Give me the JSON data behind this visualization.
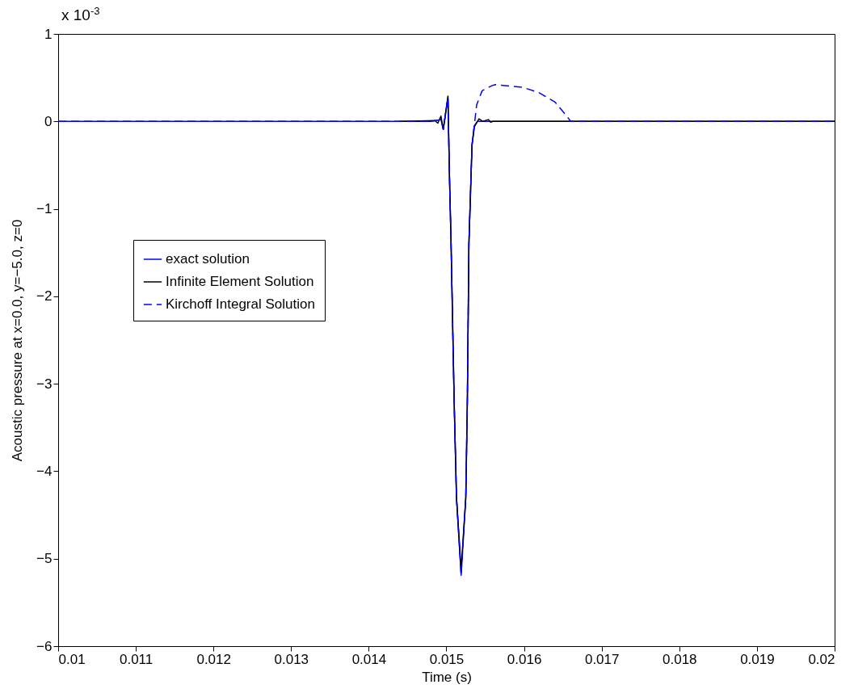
{
  "chart_data": {
    "type": "line",
    "xlabel": "Time (s)",
    "ylabel": "Acoustic pressure at x=0.0, y=−5.0, z=0",
    "annotations": [
      "x 10$^{-3}$"
    ],
    "xlim": [
      0.01,
      0.02
    ],
    "xticks": [
      0.01,
      0.011,
      0.012,
      0.013,
      0.014,
      0.015,
      0.016,
      0.017,
      0.018,
      0.019,
      0.02
    ],
    "ylim": [
      -6,
      1
    ],
    "yticks": [
      -6,
      -5,
      -4,
      -3,
      -2,
      -1,
      0,
      1
    ],
    "grid": false,
    "legend": "left",
    "marker": "none",
    "series": [
      {
        "name": "exact solution",
        "color": "#0000ff",
        "line_style": "solid",
        "x": [
          0.01,
          0.0148,
          0.01493,
          0.01496,
          0.01502,
          0.01504,
          0.01506,
          0.0151,
          0.01513,
          0.01519,
          0.01525,
          0.01527,
          0.01529,
          0.01533,
          0.01536,
          0.0154,
          0.02
        ],
        "values": [
          0,
          0,
          0.02,
          -0.09,
          0.27,
          -0.64,
          -1.38,
          -3.2,
          -4.3,
          -5.19,
          -4.3,
          -3.2,
          -1.4,
          -0.27,
          -0.05,
          0,
          0
        ]
      },
      {
        "name": "Infinite Element Solution",
        "color": "#000000",
        "line_style": "solid",
        "x": [
          0.0144,
          0.01485,
          0.01489,
          0.01493,
          0.01496,
          0.01502,
          0.01504,
          0.01506,
          0.0151,
          0.01513,
          0.01519,
          0.01525,
          0.01527,
          0.01529,
          0.01533,
          0.01536,
          0.01542,
          0.01547,
          0.01554,
          0.01557,
          0.0156,
          0.02
        ],
        "values": [
          0,
          0.01,
          -0.02,
          0.06,
          -0.09,
          0.29,
          -0.64,
          -1.38,
          -3.2,
          -4.3,
          -5.12,
          -4.3,
          -3.2,
          -1.4,
          -0.27,
          -0.06,
          0.03,
          0,
          0.02,
          -0.01,
          0,
          0
        ]
      },
      {
        "name": "Kirchoff Integral Solution",
        "color": "#0000ff",
        "line_style": "dashed",
        "x": [
          0.01,
          0.0148,
          0.01493,
          0.01496,
          0.01502,
          0.01504,
          0.01506,
          0.0151,
          0.01513,
          0.01519,
          0.01525,
          0.01527,
          0.01529,
          0.01533,
          0.01539,
          0.01546,
          0.01559,
          0.01563,
          0.01598,
          0.01619,
          0.0164,
          0.01656,
          0.0166,
          0.02
        ],
        "values": [
          0,
          0,
          0.02,
          -0.09,
          0.27,
          -0.64,
          -1.38,
          -3.2,
          -4.3,
          -5.19,
          -4.3,
          -3.2,
          -1.4,
          -0.27,
          0.19,
          0.35,
          0.41,
          0.42,
          0.39,
          0.33,
          0.22,
          0.05,
          0,
          0
        ]
      }
    ]
  }
}
